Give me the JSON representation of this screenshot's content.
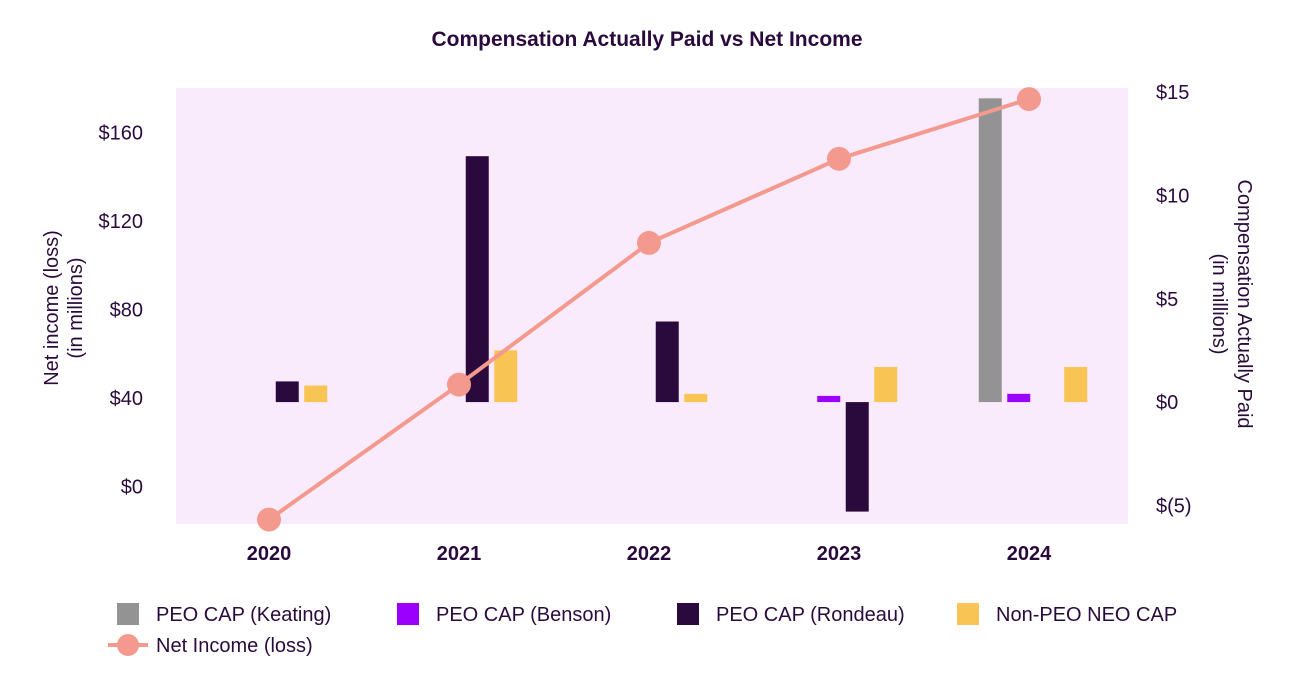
{
  "chart_data": {
    "type": "bar",
    "title": "Compensation Actually Paid vs Net Income",
    "categories": [
      "2020",
      "2021",
      "2022",
      "2023",
      "2024"
    ],
    "left_axis": {
      "label_line1": "Net income (loss)",
      "label_line2": "(in millions)",
      "ticks": [
        0,
        40,
        80,
        120,
        160
      ],
      "tick_labels": [
        "$0",
        "$40",
        "$80",
        "$120",
        "$160"
      ],
      "range": [
        -17,
        180
      ]
    },
    "right_axis": {
      "label_line1": "Compensation Actually Paid",
      "label_line2": "(in millions)",
      "ticks": [
        -5,
        0,
        5,
        10,
        15
      ],
      "tick_labels": [
        "$(5)",
        "$0",
        "$5",
        "$10",
        "$15"
      ],
      "range": [
        -5.9,
        15.2
      ]
    },
    "series": [
      {
        "name": "PEO CAP (Keating)",
        "axis": "right",
        "color": "#939393",
        "values": [
          null,
          null,
          null,
          null,
          14.7
        ]
      },
      {
        "name": "PEO CAP (Benson)",
        "axis": "right",
        "color": "#9b00ff",
        "values": [
          null,
          null,
          null,
          0.3,
          0.4
        ]
      },
      {
        "name": "PEO CAP (Rondeau)",
        "axis": "right",
        "color": "#2a0a3d",
        "values": [
          1.0,
          11.9,
          3.9,
          -5.3,
          null
        ]
      },
      {
        "name": "Non-PEO NEO CAP",
        "axis": "right",
        "color": "#f8c453",
        "values": [
          0.8,
          2.5,
          0.4,
          1.7,
          1.7
        ]
      },
      {
        "name": "Net Income (loss)",
        "type": "line",
        "axis": "left",
        "color": "#f4998d",
        "values": [
          -15,
          46,
          110,
          148,
          175
        ]
      }
    ],
    "plot_background": "#f9ebfc",
    "legend_position": "bottom"
  }
}
